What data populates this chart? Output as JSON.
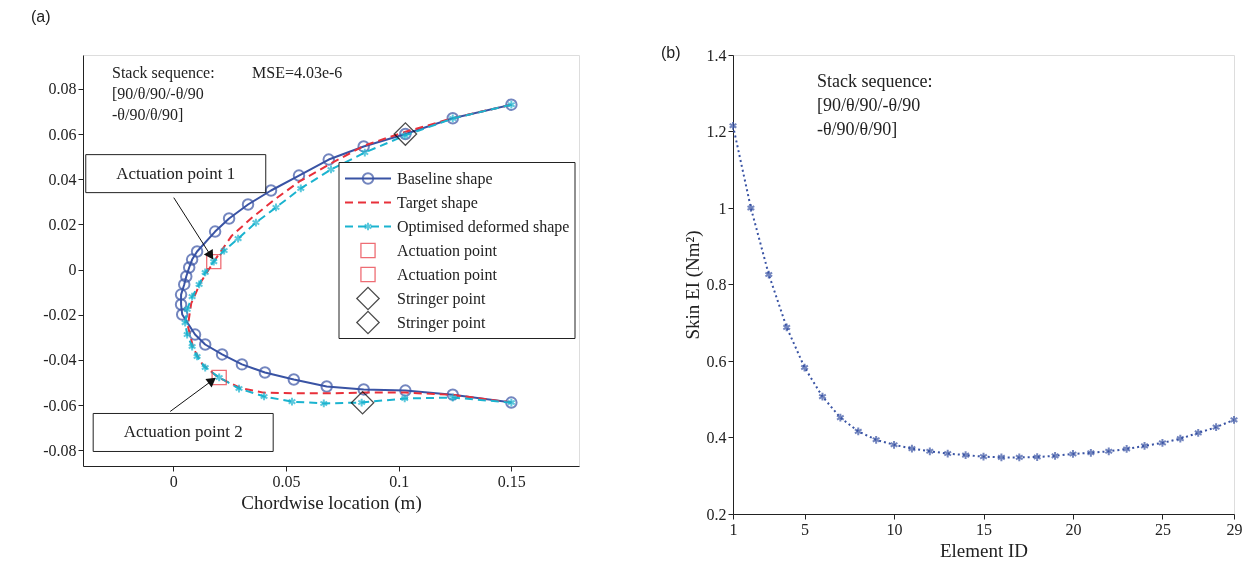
{
  "chart_data": [
    {
      "type": "line",
      "title": "(a)",
      "xlabel": "Chordwise location (m)",
      "xlim": [
        -0.04,
        0.18
      ],
      "xticks": [
        0,
        0.05,
        0.1,
        0.15
      ],
      "ylim": [
        -0.087,
        0.095
      ],
      "yticks": [
        -0.08,
        -0.06,
        -0.04,
        -0.02,
        0,
        0.02,
        0.04,
        0.06,
        0.08
      ],
      "grid": false,
      "legend": "right",
      "annotations": [
        "Stack sequence:\n[90/θ/90/-θ/90\n -θ/90/θ/90]",
        "MSE=4.03e-6",
        {
          "text": "Actuation point 1",
          "x": 0.018,
          "y": 0.0035
        },
        {
          "text": "Actuation point 2",
          "x": 0.0204,
          "y": -0.0478
        }
      ],
      "series": [
        {
          "name": "Baseline shape",
          "color": "#3953a4",
          "type": "line",
          "marker": "circle",
          "line_style": "solid",
          "x": [
            0.15,
            0.124,
            0.103,
            0.0845,
            0.069,
            0.0558,
            0.0434,
            0.0332,
            0.0248,
            0.0186,
            0.0106,
            0.0084,
            0.0071,
            0.0058,
            0.0049,
            0.0035,
            0.0035,
            0.004,
            0.0097,
            0.0142,
            0.0217,
            0.0305,
            0.0407,
            0.0535,
            0.0681,
            0.0845,
            0.103,
            0.124,
            0.15
          ],
          "values": [
            0.073,
            0.067,
            0.06,
            0.0545,
            0.0487,
            0.0416,
            0.035,
            0.0288,
            0.0226,
            0.0168,
            0.008,
            0.0044,
            0.0009,
            -0.0031,
            -0.0066,
            -0.0111,
            -0.0155,
            -0.0199,
            -0.0288,
            -0.0332,
            -0.0376,
            -0.042,
            -0.0456,
            -0.0487,
            -0.0518,
            -0.0531,
            -0.0536,
            -0.0554,
            -0.0589
          ]
        },
        {
          "name": "Target shape",
          "color": "#e8303a",
          "type": "line",
          "marker": "none",
          "line_style": "dashed",
          "x": [
            0.15,
            0.124,
            0.103,
            0.085,
            0.07,
            0.056,
            0.045,
            0.035,
            0.026,
            0.018,
            0.012,
            0.008,
            0.0065,
            0.009,
            0.013,
            0.02,
            0.03,
            0.04,
            0.055,
            0.07,
            0.085,
            0.103,
            0.124,
            0.15
          ],
          "values": [
            0.073,
            0.067,
            0.061,
            0.055,
            0.047,
            0.039,
            0.031,
            0.023,
            0.015,
            0.0035,
            -0.006,
            -0.015,
            -0.025,
            -0.035,
            -0.042,
            -0.0478,
            -0.0525,
            -0.0545,
            -0.0548,
            -0.0548,
            -0.0545,
            -0.0545,
            -0.0555,
            -0.0589
          ]
        },
        {
          "name": "Optimised deformed shape",
          "color": "#1ab3cf",
          "type": "line",
          "marker": "cross",
          "line_style": "dashed",
          "x": [
            0.15,
            0.124,
            0.1027,
            0.085,
            0.07,
            0.0566,
            0.0456,
            0.0367,
            0.0288,
            0.0226,
            0.018,
            0.0142,
            0.0115,
            0.0084,
            0.0062,
            0.0053,
            0.0062,
            0.0084,
            0.0106,
            0.0142,
            0.0204,
            0.0292,
            0.0403,
            0.0527,
            0.0668,
            0.0836,
            0.1027,
            0.124,
            0.15
          ],
          "values": [
            0.073,
            0.0669,
            0.0593,
            0.0518,
            0.0443,
            0.0359,
            0.0275,
            0.0208,
            0.0137,
            0.0084,
            0.0035,
            -0.0013,
            -0.0066,
            -0.012,
            -0.0177,
            -0.0235,
            -0.0288,
            -0.0341,
            -0.0385,
            -0.0434,
            -0.0478,
            -0.0527,
            -0.0562,
            -0.0585,
            -0.0593,
            -0.0589,
            -0.0571,
            -0.0567,
            -0.0589
          ]
        },
        {
          "name": "Actuation point",
          "color": "#e8303a",
          "type": "scatter",
          "marker": "square",
          "x": [
            0.018
          ],
          "values": [
            0.0035
          ]
        },
        {
          "name": "Actuation point",
          "color": "#e8303a",
          "type": "scatter",
          "marker": "square",
          "x": [
            0.0204
          ],
          "values": [
            -0.0478
          ]
        },
        {
          "name": "Stringer point",
          "color": "#000000",
          "type": "scatter",
          "marker": "diamond",
          "x": [
            0.103
          ],
          "values": [
            0.06
          ]
        },
        {
          "name": "Stringer point",
          "color": "#000000",
          "type": "scatter",
          "marker": "diamond",
          "x": [
            0.084
          ],
          "values": [
            -0.059
          ]
        }
      ]
    },
    {
      "type": "line",
      "title": "(b)",
      "xlabel": "Element ID",
      "ylabel": "Skin EI (Nm²)",
      "xlim": [
        1,
        29
      ],
      "xticks": [
        1,
        5,
        10,
        15,
        20,
        25,
        29
      ],
      "ylim": [
        0.2,
        1.4
      ],
      "yticks": [
        0.2,
        0.4,
        0.6,
        0.8,
        1,
        1.2,
        1.4
      ],
      "grid": false,
      "color": "#3953a4",
      "marker": "cross",
      "line_style": "dotted",
      "annotations": [
        "Stack sequence:\n[90/θ/90/-θ/90\n -θ/90/θ/90]"
      ],
      "x": [
        1,
        2,
        3,
        4,
        5,
        6,
        7,
        8,
        9,
        10,
        11,
        12,
        13,
        14,
        15,
        16,
        17,
        18,
        19,
        20,
        21,
        22,
        23,
        24,
        25,
        26,
        27,
        28,
        29
      ],
      "values": [
        1.215,
        1.0,
        0.826,
        0.688,
        0.583,
        0.507,
        0.452,
        0.416,
        0.394,
        0.381,
        0.371,
        0.364,
        0.358,
        0.354,
        0.35,
        0.348,
        0.348,
        0.349,
        0.352,
        0.357,
        0.36,
        0.364,
        0.37,
        0.378,
        0.386,
        0.397,
        0.412,
        0.427,
        0.446
      ]
    }
  ]
}
